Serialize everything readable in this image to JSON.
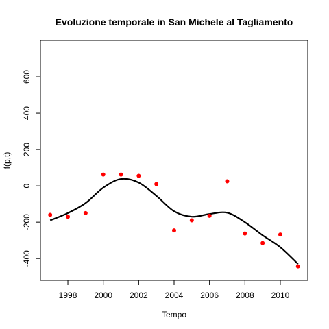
{
  "chart_data": {
    "type": "scatter",
    "title": "Evoluzione temporale in San Michele al Tagliamento",
    "xlabel": "Tempo",
    "ylabel": "f(p,t)",
    "xlim": [
      1996.45,
      2011.55
    ],
    "ylim": [
      -520,
      800
    ],
    "xticks": [
      1998,
      2000,
      2002,
      2004,
      2006,
      2008,
      2010
    ],
    "yticks": [
      -400,
      -200,
      0,
      200,
      400,
      600
    ],
    "grid": false,
    "series": [
      {
        "kind": "points",
        "color": "#ff0000",
        "points": [
          {
            "x": 1997,
            "y": -160
          },
          {
            "x": 1998,
            "y": -170
          },
          {
            "x": 1999,
            "y": -150
          },
          {
            "x": 2000,
            "y": 62
          },
          {
            "x": 2001,
            "y": 62
          },
          {
            "x": 2002,
            "y": 55
          },
          {
            "x": 2003,
            "y": 10
          },
          {
            "x": 2004,
            "y": -245
          },
          {
            "x": 2005,
            "y": -190
          },
          {
            "x": 2006,
            "y": -165
          },
          {
            "x": 2007,
            "y": 25
          },
          {
            "x": 2008,
            "y": -262
          },
          {
            "x": 2009,
            "y": -315
          },
          {
            "x": 2010,
            "y": -268
          },
          {
            "x": 2011,
            "y": -443
          }
        ]
      },
      {
        "kind": "line",
        "color": "#000000",
        "points": [
          {
            "x": 1997,
            "y": -190
          },
          {
            "x": 1998,
            "y": -150
          },
          {
            "x": 1999,
            "y": -95
          },
          {
            "x": 2000,
            "y": -10
          },
          {
            "x": 2001,
            "y": 38
          },
          {
            "x": 2002,
            "y": 18
          },
          {
            "x": 2003,
            "y": -55
          },
          {
            "x": 2004,
            "y": -140
          },
          {
            "x": 2005,
            "y": -170
          },
          {
            "x": 2006,
            "y": -155
          },
          {
            "x": 2007,
            "y": -148
          },
          {
            "x": 2008,
            "y": -200
          },
          {
            "x": 2009,
            "y": -272
          },
          {
            "x": 2010,
            "y": -338
          },
          {
            "x": 2011,
            "y": -430
          }
        ]
      }
    ]
  }
}
